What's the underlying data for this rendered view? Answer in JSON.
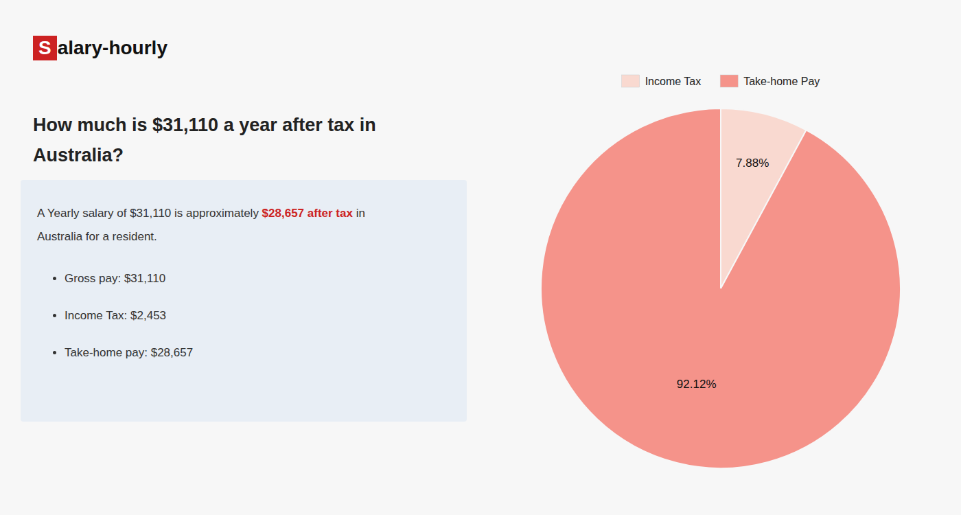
{
  "chart_data": {
    "type": "pie",
    "title": [
      "How much is $31,110 a year after tax in",
      "Australia?"
    ],
    "categories": [
      "Income Tax",
      "Take-home Pay"
    ],
    "values": [
      7.88,
      92.12
    ],
    "value_labels": [
      "7.88%",
      "92.12%"
    ],
    "colors": [
      "#f9d9d0",
      "#f5938a"
    ],
    "data_labels": true,
    "legend": "top",
    "annotations": [
      {
        "text": [
          "S",
          "alary-hourly"
        ],
        "colors": [
          "#cc2222",
          "#111111"
        ]
      },
      {
        "text": [
          "A Yearly salary of $31,110 is approximately ",
          "$28,657 after tax",
          " in"
        ],
        "colors": [
          "#333333",
          "#cc2222",
          "#333333"
        ]
      },
      {
        "text": [
          "Australia for a resident."
        ],
        "colors": [
          "#333333"
        ]
      },
      {
        "text": [
          "Gross pay: $31,110"
        ],
        "colors": [
          "#333333"
        ]
      },
      {
        "text": [
          "Income Tax: $2,453"
        ],
        "colors": [
          "#333333"
        ]
      },
      {
        "text": [
          "Take-home pay: $28,657"
        ],
        "colors": [
          "#333333"
        ]
      }
    ]
  }
}
